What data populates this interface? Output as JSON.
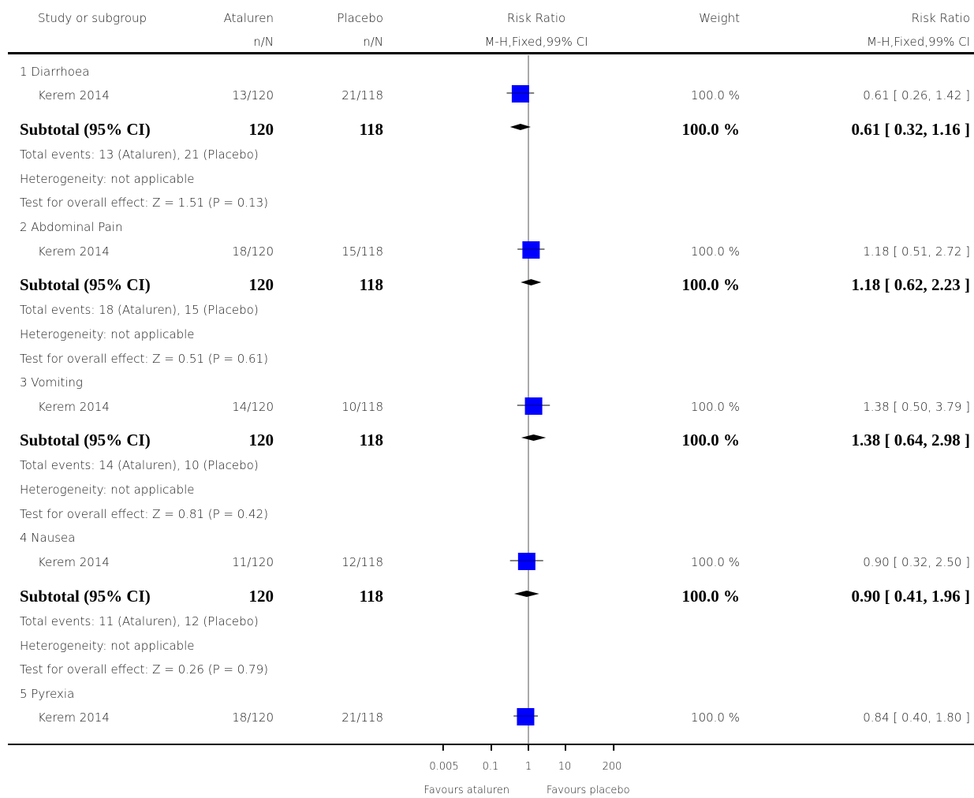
{
  "header": {
    "study": "Study or subgroup",
    "exp": "Ataluren",
    "exp_sub": "n/N",
    "ctrl": "Placebo",
    "ctrl_sub": "n/N",
    "rr": "Risk Ratio",
    "rr_sub": "M-H,Fixed,99% CI",
    "weight": "Weight",
    "rr2": "Risk Ratio",
    "rr2_sub": "M-H,Fixed,99% CI"
  },
  "groups": [
    {
      "title": "1 Diarrhoea",
      "study": {
        "name": "Kerem 2014",
        "exp": "13/120",
        "ctrl": "21/118",
        "weight": "100.0 %",
        "ci_text": "0.61 [ 0.26, 1.42 ]"
      },
      "subtotal": {
        "label": "Subtotal (95% CI)",
        "exp": "120",
        "ctrl": "118",
        "weight": "100.0 %",
        "ci_text": "0.61 [ 0.32, 1.16 ]"
      },
      "notes": [
        "Total events: 13 (Ataluren), 21 (Placebo)",
        "Heterogeneity: not applicable",
        "Test for overall effect: Z = 1.51  (P = 0.13)"
      ]
    },
    {
      "title": "2 Abdominal Pain",
      "study": {
        "name": "Kerem 2014",
        "exp": "18/120",
        "ctrl": "15/118",
        "weight": "100.0 %",
        "ci_text": "1.18 [ 0.51, 2.72 ]"
      },
      "subtotal": {
        "label": "Subtotal (95% CI)",
        "exp": "120",
        "ctrl": "118",
        "weight": "100.0 %",
        "ci_text": "1.18 [ 0.62, 2.23 ]"
      },
      "notes": [
        "Total events: 18 (Ataluren), 15 (Placebo)",
        "Heterogeneity: not applicable",
        "Test for overall effect: Z = 0.51  (P = 0.61)"
      ]
    },
    {
      "title": "3 Vomiting",
      "study": {
        "name": "Kerem 2014",
        "exp": "14/120",
        "ctrl": "10/118",
        "weight": "100.0 %",
        "ci_text": "1.38 [ 0.50, 3.79 ]"
      },
      "subtotal": {
        "label": "Subtotal (95% CI)",
        "exp": "120",
        "ctrl": "118",
        "weight": "100.0 %",
        "ci_text": "1.38 [ 0.64, 2.98 ]"
      },
      "notes": [
        "Total events: 14 (Ataluren), 10 (Placebo)",
        "Heterogeneity: not applicable",
        "Test for overall effect: Z = 0.81  (P = 0.42)"
      ]
    },
    {
      "title": "4 Nausea",
      "study": {
        "name": "Kerem 2014",
        "exp": "11/120",
        "ctrl": "12/118",
        "weight": "100.0 %",
        "ci_text": "0.90 [ 0.32, 2.50 ]"
      },
      "subtotal": {
        "label": "Subtotal (95% CI)",
        "exp": "120",
        "ctrl": "118",
        "weight": "100.0 %",
        "ci_text": "0.90 [ 0.41, 1.96 ]"
      },
      "notes": [
        "Total events: 11 (Ataluren), 12 (Placebo)",
        "Heterogeneity: not applicable",
        "Test for overall effect: Z = 0.26  (P = 0.79)"
      ]
    },
    {
      "title": "5 Pyrexia",
      "study": {
        "name": "Kerem 2014",
        "exp": "18/120",
        "ctrl": "21/118",
        "weight": "100.0 %",
        "ci_text": "0.84 [ 0.40, 1.80 ]"
      }
    }
  ],
  "axis": {
    "ticks": [
      "0.005",
      "0.1",
      "1",
      "10",
      "200"
    ],
    "favours_left": "Favours ataluren",
    "favours_right": "Favours placebo"
  },
  "colors": {
    "study_marker": "#0000ff",
    "subtotal_marker": "#000000",
    "reference_line": "#555555"
  },
  "chart_data": {
    "type": "forest",
    "scale": "log",
    "xlim": [
      0.005,
      200
    ],
    "x_ticks": [
      0.005,
      0.1,
      1,
      10,
      200
    ],
    "reference_value": 1,
    "studies": [
      {
        "group": "1 Diarrhoea",
        "rr": 0.61,
        "lo": 0.26,
        "hi": 1.42,
        "weight": 100.0
      },
      {
        "group": "2 Abdominal Pain",
        "rr": 1.18,
        "lo": 0.51,
        "hi": 2.72,
        "weight": 100.0
      },
      {
        "group": "3 Vomiting",
        "rr": 1.38,
        "lo": 0.5,
        "hi": 3.79,
        "weight": 100.0
      },
      {
        "group": "4 Nausea",
        "rr": 0.9,
        "lo": 0.32,
        "hi": 2.5,
        "weight": 100.0
      },
      {
        "group": "5 Pyrexia",
        "rr": 0.84,
        "lo": 0.4,
        "hi": 1.8,
        "weight": 100.0
      }
    ],
    "subtotals": [
      {
        "group": "1 Diarrhoea",
        "rr": 0.61,
        "lo": 0.32,
        "hi": 1.16
      },
      {
        "group": "2 Abdominal Pain",
        "rr": 1.18,
        "lo": 0.62,
        "hi": 2.23
      },
      {
        "group": "3 Vomiting",
        "rr": 1.38,
        "lo": 0.64,
        "hi": 2.98
      },
      {
        "group": "4 Nausea",
        "rr": 0.9,
        "lo": 0.41,
        "hi": 1.96
      }
    ]
  }
}
